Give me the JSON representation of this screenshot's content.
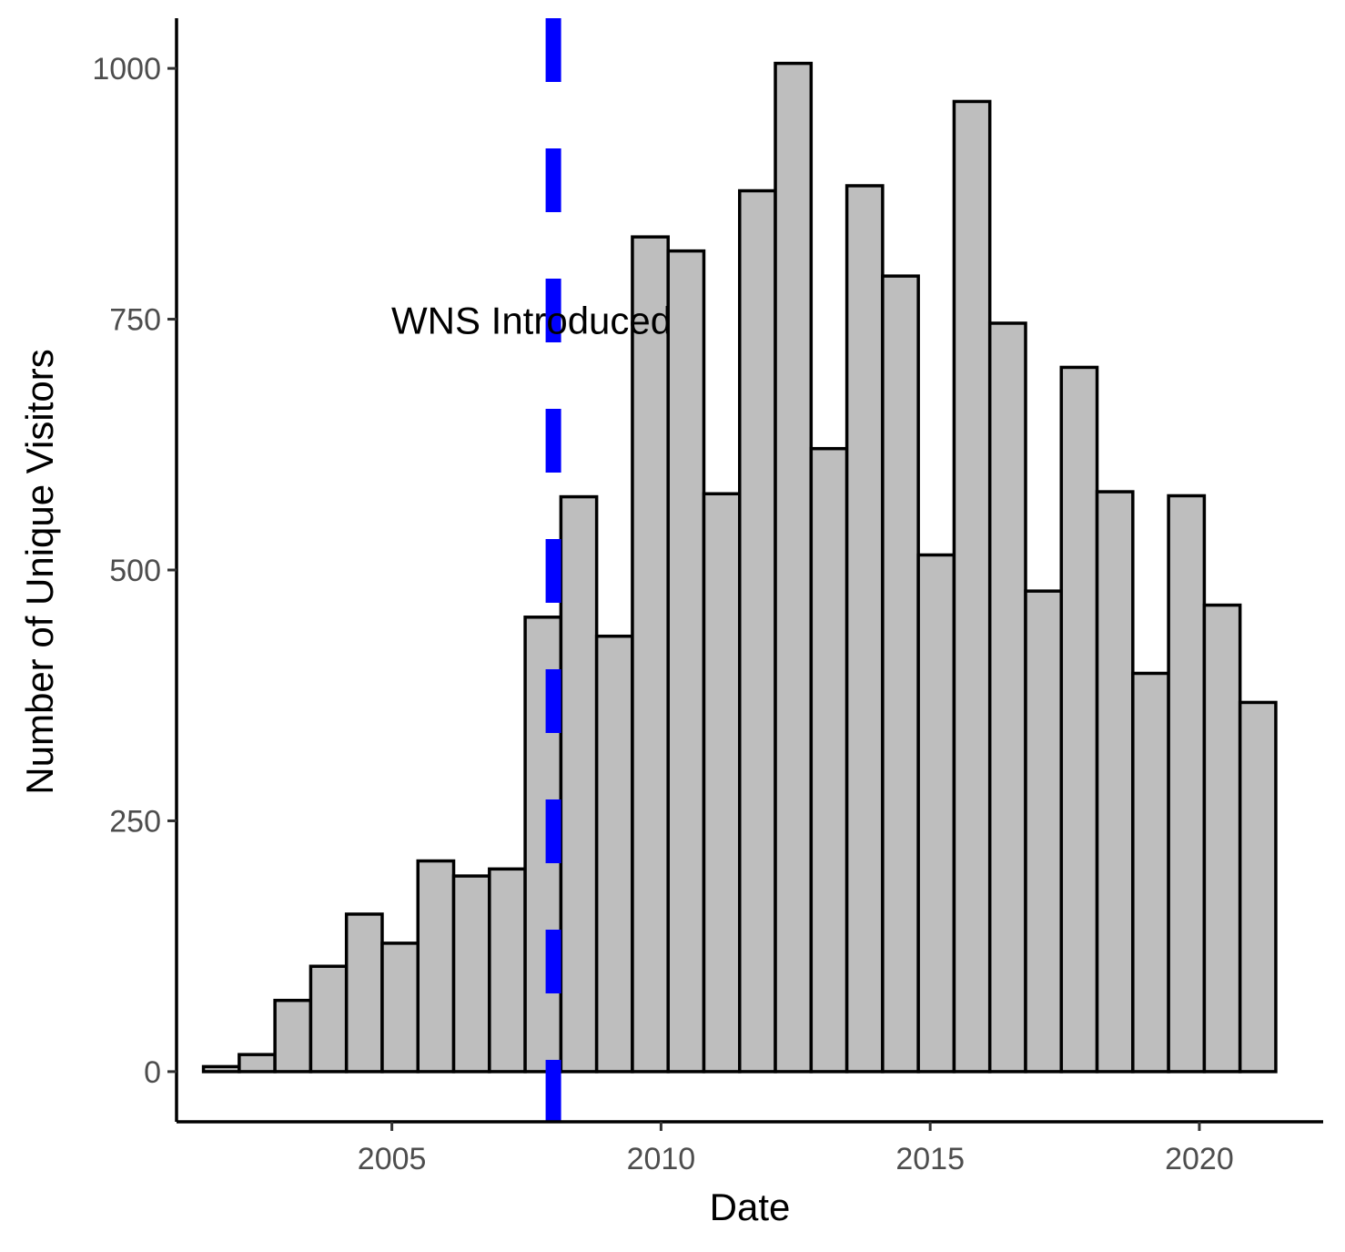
{
  "chart_data": {
    "type": "bar",
    "title": "",
    "xlabel": "Date",
    "ylabel": "Number of Unique Visitors",
    "xlim": [
      2001.0,
      2022.3
    ],
    "ylim": [
      -50,
      1050
    ],
    "x_ticks": [
      2005,
      2010,
      2015,
      2020
    ],
    "y_ticks": [
      0,
      250,
      500,
      750,
      1000
    ],
    "grid": false,
    "bar_fill": "#bebebe",
    "bar_outline": "#000000",
    "bins": {
      "start": 2001.5,
      "width": 0.664,
      "counts": [
        5,
        17,
        71,
        105,
        157,
        128,
        210,
        195,
        202,
        453,
        573,
        434,
        832,
        818,
        576,
        878,
        1005,
        621,
        883,
        793,
        515,
        967,
        746,
        479,
        702,
        578,
        397,
        574,
        465,
        368
      ]
    },
    "reference_line": {
      "x": 2008.0,
      "color": "#0000ff",
      "style": "dashed"
    },
    "annotation": {
      "text": "WNS Introduced",
      "x": 2008.0,
      "y": 750
    }
  }
}
